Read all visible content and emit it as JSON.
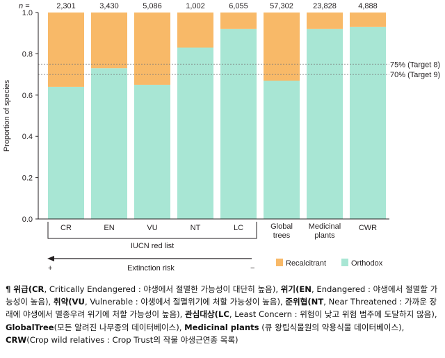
{
  "chart_data": {
    "type": "bar",
    "stacked": true,
    "n_prefix": "n =",
    "categories": [
      "CR",
      "EN",
      "VU",
      "NT",
      "LC",
      "Global\ntrees",
      "Medicinal\nplants",
      "CWR"
    ],
    "n_values": [
      "2,301",
      "3,430",
      "5,086",
      "1,002",
      "6,055",
      "57,302",
      "23,828",
      "4,888"
    ],
    "series": [
      {
        "name": "Orthodox",
        "color": "#a8e6d4",
        "values": [
          0.64,
          0.73,
          0.65,
          0.83,
          0.92,
          0.67,
          0.92,
          0.93
        ]
      },
      {
        "name": "Recalcitrant",
        "color": "#f8b968",
        "values": [
          0.36,
          0.27,
          0.35,
          0.17,
          0.08,
          0.33,
          0.08,
          0.07
        ]
      }
    ],
    "ylabel": "Proportion of species",
    "ylim": [
      0,
      1.0
    ],
    "yticks": [
      "0.0",
      "0.2",
      "0.4",
      "0.6",
      "0.8",
      "1.0"
    ],
    "reference_lines": [
      {
        "value": 0.75,
        "label": "75% (Target 8)"
      },
      {
        "value": 0.7,
        "label": "70% (Target 9)"
      }
    ],
    "group_label": "IUCN red list",
    "group_count": 5,
    "arrow_label": "Extinction risk",
    "arrow_plus": "+",
    "arrow_minus": "−",
    "legend": [
      "Recalcitrant",
      "Orthodox"
    ],
    "legend_position": "bottom-right"
  },
  "caption": [
    {
      "b": "¶ 위급(CR",
      "t": ", Critically Endangered : 야생에서 절멸한 가능성이 대단히 높음), "
    },
    {
      "b": "위기(EN",
      "t": ", Endangered : 야생에서 절멸할 가능성이 높음), "
    },
    {
      "b": "취약(VU",
      "t": ", Vulnerable : 야생에서 절멸위기에 처할 가능성이 높음), "
    },
    {
      "b": "준위협(NT",
      "t": ", Near Threatened : 가까운 장래에 야생에서 멸종우려 위기에 처할 가능성이 높음), "
    },
    {
      "b": "관심대상(LC",
      "t": ", Least Concern : 위험이 낮고 위험 범주에 도달하지 않음), "
    },
    {
      "b": "GlobalTree",
      "t": "(모든 알려진 나무종의 데이터베이스), "
    },
    {
      "b": "Medicinal plants",
      "t": " (큐 왕립식물원의 약용식물 데이터베이스), "
    },
    {
      "b": "CRW",
      "t": "(Crop wild relatives : Crop Trust의 작물 야생근연종 목록)"
    }
  ]
}
